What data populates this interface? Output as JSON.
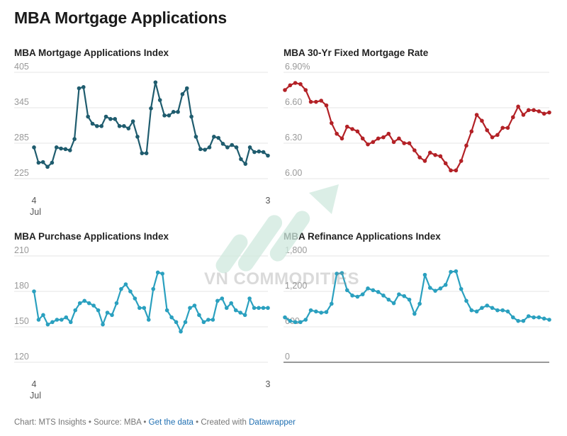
{
  "title": "MBA Mortgage Applications",
  "footer": {
    "chart_credit": "Chart: MTS Insights",
    "source": "Source: MBA",
    "data_link": "Get the data",
    "created_with_prefix": "Created with",
    "tool_link": "Datawrapper"
  },
  "watermark": "VN COMMODITIES",
  "colors": {
    "index": "#1f5c6e",
    "rate": "#b32126",
    "purchase": "#2aa0bf",
    "refinance": "#2aa0bf",
    "grid": "#e5e5e5",
    "tick_label": "#999999",
    "watermark_accent": "#cfe9de"
  },
  "chart_data": [
    {
      "id": "applications-index",
      "type": "line",
      "title": "MBA Mortgage Applications Index",
      "ylim": [
        225,
        405
      ],
      "yticks": [
        "405",
        "345",
        "285",
        "225"
      ],
      "ytick_values": [
        405,
        345,
        285,
        225
      ],
      "xtick_labels": [
        "4",
        "3"
      ],
      "xtick_sub": "Jul",
      "values": [
        278,
        252,
        253,
        245,
        252,
        278,
        276,
        275,
        273,
        292,
        378,
        380,
        330,
        318,
        314,
        314,
        330,
        326,
        326,
        314,
        314,
        310,
        322,
        296,
        268,
        268,
        344,
        388,
        358,
        332,
        332,
        338,
        338,
        368,
        378,
        330,
        296,
        275,
        274,
        278,
        296,
        294,
        284,
        278,
        282,
        278,
        258,
        250,
        278,
        270,
        271,
        270,
        264
      ]
    },
    {
      "id": "fixed-rate",
      "type": "line",
      "title": "MBA 30-Yr Fixed Mortgage Rate",
      "ylim": [
        6.0,
        6.9
      ],
      "yticks": [
        "6.90%",
        "6.60",
        "6.30",
        "6.00"
      ],
      "ytick_values": [
        6.9,
        6.6,
        6.3,
        6.0
      ],
      "values": [
        6.75,
        6.79,
        6.81,
        6.8,
        6.75,
        6.65,
        6.65,
        6.66,
        6.62,
        6.47,
        6.38,
        6.34,
        6.44,
        6.42,
        6.4,
        6.34,
        6.29,
        6.31,
        6.34,
        6.35,
        6.38,
        6.31,
        6.34,
        6.3,
        6.3,
        6.24,
        6.18,
        6.15,
        6.22,
        6.2,
        6.19,
        6.13,
        6.07,
        6.07,
        6.15,
        6.28,
        6.4,
        6.54,
        6.49,
        6.41,
        6.35,
        6.37,
        6.43,
        6.43,
        6.52,
        6.61,
        6.54,
        6.58,
        6.58,
        6.57,
        6.55,
        6.56
      ]
    },
    {
      "id": "purchase-index",
      "type": "line",
      "title": "MBA Purchase Applications Index",
      "ylim": [
        120,
        210
      ],
      "yticks": [
        "210",
        "180",
        "150",
        "120"
      ],
      "ytick_values": [
        210,
        180,
        150,
        120
      ],
      "xtick_labels": [
        "4",
        "3"
      ],
      "xtick_sub": "Jul",
      "values": [
        180,
        156,
        160,
        152,
        154,
        156,
        156,
        158,
        154,
        164,
        170,
        172,
        170,
        168,
        164,
        152,
        162,
        160,
        170,
        182,
        186,
        180,
        174,
        166,
        166,
        156,
        182,
        196,
        195,
        164,
        158,
        154,
        146,
        154,
        166,
        168,
        160,
        154,
        156,
        156,
        172,
        174,
        166,
        170,
        164,
        162,
        160,
        174,
        166,
        166,
        166,
        166
      ]
    },
    {
      "id": "refinance-index",
      "type": "line",
      "title": "MBA Refinance Applications Index",
      "ylim": [
        0,
        1800
      ],
      "yticks": [
        "1,800",
        "1,200",
        "600",
        "0"
      ],
      "ytick_values": [
        1800,
        1200,
        600,
        0
      ],
      "values": [
        760,
        700,
        680,
        680,
        720,
        880,
        860,
        840,
        850,
        990,
        1500,
        1510,
        1220,
        1130,
        1110,
        1150,
        1250,
        1220,
        1190,
        1130,
        1060,
        1000,
        1150,
        1120,
        1060,
        820,
        990,
        1480,
        1260,
        1210,
        1250,
        1310,
        1530,
        1540,
        1240,
        1040,
        880,
        860,
        920,
        960,
        920,
        880,
        880,
        860,
        760,
        700,
        700,
        780,
        760,
        760,
        740,
        720
      ]
    }
  ]
}
